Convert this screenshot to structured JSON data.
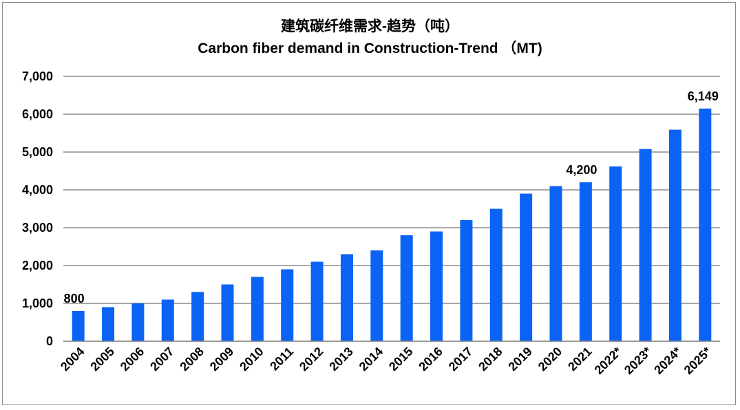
{
  "chart_data": {
    "type": "bar",
    "title": "建筑碳纤维需求-趋势（吨）",
    "subtitle": "Carbon fiber demand in Construction-Trend （MT)",
    "xlabel": "",
    "ylabel": "",
    "ylim": [
      0,
      7000
    ],
    "yticks": [
      "0",
      "1,000",
      "2,000",
      "3,000",
      "4,000",
      "5,000",
      "6,000",
      "7,000"
    ],
    "grid": true,
    "legend": "none",
    "color": "#0a63f5",
    "categories": [
      "2004",
      "2005",
      "2006",
      "2007",
      "2008",
      "2009",
      "2010",
      "2011",
      "2012",
      "2013",
      "2014",
      "2015",
      "2016",
      "2017",
      "2018",
      "2019",
      "2020",
      "2021",
      "2022*",
      "2023*",
      "2024*",
      "2025*"
    ],
    "values": [
      800,
      900,
      1000,
      1100,
      1300,
      1500,
      1700,
      1900,
      2100,
      2300,
      2400,
      2800,
      2900,
      3200,
      3500,
      3900,
      4100,
      4200,
      4620,
      5080,
      5590,
      6149
    ],
    "data_labels": [
      {
        "index": 0,
        "text": "800"
      },
      {
        "index": 17,
        "text": "4,200"
      },
      {
        "index": 21,
        "text": "6,149"
      }
    ]
  }
}
